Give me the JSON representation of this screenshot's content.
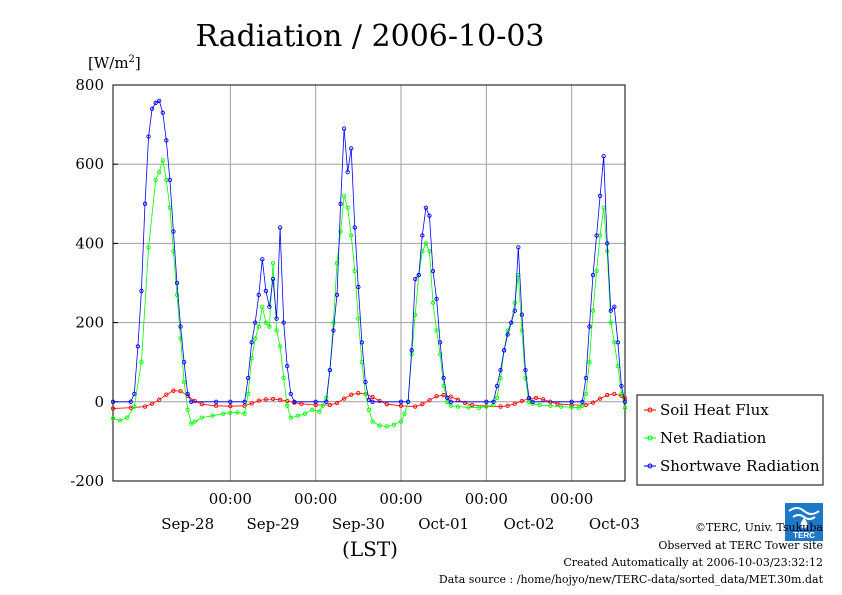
{
  "chart_data": {
    "type": "line",
    "title": "Radiation / 2006-10-03",
    "ylabel": "[W/m",
    "ylabel_sup": "2",
    "ylabel_close": "]",
    "xlabel": "(LST)",
    "ylim": [
      -200,
      800
    ],
    "yticks": [
      "800",
      "600",
      "400",
      "200",
      "0",
      "-200"
    ],
    "ytick_values": [
      800,
      600,
      400,
      200,
      0,
      -200
    ],
    "x_range_hours": [
      -33,
      111
    ],
    "xtick_hours": [
      0,
      24,
      48,
      72,
      96
    ],
    "xtick_time_labels": [
      "00:00",
      "00:00",
      "00:00",
      "00:00",
      "00:00"
    ],
    "date_labels": [
      "Sep-28",
      "Sep-29",
      "Sep-30",
      "Oct-01",
      "Oct-02",
      "Oct-03"
    ],
    "date_label_hours": [
      -12,
      12,
      36,
      60,
      84,
      108
    ],
    "grid": true,
    "legend_position": "right",
    "series": [
      {
        "name": "Soil Heat Flux",
        "color": "#ff0000",
        "points": [
          [
            -33,
            -17
          ],
          [
            -28,
            -15
          ],
          [
            -24,
            -12
          ],
          [
            -22,
            -5
          ],
          [
            -20,
            5
          ],
          [
            -18,
            18
          ],
          [
            -16,
            28
          ],
          [
            -14,
            27
          ],
          [
            -12,
            15
          ],
          [
            -10,
            2
          ],
          [
            -8,
            -6
          ],
          [
            -4,
            -10
          ],
          [
            0,
            -11
          ],
          [
            4,
            -10
          ],
          [
            6,
            -4
          ],
          [
            8,
            3
          ],
          [
            10,
            6
          ],
          [
            12,
            7
          ],
          [
            14,
            5
          ],
          [
            16,
            2
          ],
          [
            18,
            -2
          ],
          [
            20,
            -5
          ],
          [
            24,
            -8
          ],
          [
            28,
            -8
          ],
          [
            30,
            -3
          ],
          [
            32,
            8
          ],
          [
            34,
            18
          ],
          [
            36,
            22
          ],
          [
            38,
            20
          ],
          [
            40,
            12
          ],
          [
            42,
            2
          ],
          [
            44,
            -6
          ],
          [
            48,
            -10
          ],
          [
            52,
            -12
          ],
          [
            54,
            -6
          ],
          [
            56,
            4
          ],
          [
            58,
            14
          ],
          [
            60,
            17
          ],
          [
            62,
            13
          ],
          [
            64,
            5
          ],
          [
            66,
            -3
          ],
          [
            68,
            -8
          ],
          [
            72,
            -11
          ],
          [
            76,
            -12
          ],
          [
            78,
            -10
          ],
          [
            80,
            -5
          ],
          [
            82,
            2
          ],
          [
            84,
            8
          ],
          [
            86,
            10
          ],
          [
            88,
            6
          ],
          [
            90,
            0
          ],
          [
            92,
            -5
          ],
          [
            96,
            -8
          ],
          [
            100,
            -8
          ],
          [
            102,
            -2
          ],
          [
            104,
            8
          ],
          [
            106,
            17
          ],
          [
            108,
            20
          ],
          [
            110,
            15
          ],
          [
            111,
            9
          ]
        ]
      },
      {
        "name": "Net Radiation",
        "color": "#00ff00",
        "points": [
          [
            -33,
            -42
          ],
          [
            -31,
            -47
          ],
          [
            -29,
            -40
          ],
          [
            -27,
            -12
          ],
          [
            -25,
            100
          ],
          [
            -23,
            390
          ],
          [
            -21,
            560
          ],
          [
            -20,
            580
          ],
          [
            -19,
            610
          ],
          [
            -18,
            560
          ],
          [
            -17,
            490
          ],
          [
            -16,
            380
          ],
          [
            -15,
            270
          ],
          [
            -14,
            160
          ],
          [
            -13,
            50
          ],
          [
            -12,
            -20
          ],
          [
            -11,
            -55
          ],
          [
            -10,
            -50
          ],
          [
            -8,
            -40
          ],
          [
            -5,
            -35
          ],
          [
            -2,
            -30
          ],
          [
            0,
            -28
          ],
          [
            2,
            -27
          ],
          [
            4,
            -30
          ],
          [
            5,
            20
          ],
          [
            6,
            110
          ],
          [
            7,
            160
          ],
          [
            8,
            190
          ],
          [
            9,
            240
          ],
          [
            10,
            200
          ],
          [
            11,
            190
          ],
          [
            12,
            350
          ],
          [
            13,
            180
          ],
          [
            14,
            140
          ],
          [
            15,
            60
          ],
          [
            16,
            -10
          ],
          [
            17,
            -40
          ],
          [
            19,
            -35
          ],
          [
            21,
            -30
          ],
          [
            23,
            -20
          ],
          [
            25,
            -25
          ],
          [
            26,
            -10
          ],
          [
            27,
            10
          ],
          [
            28,
            80
          ],
          [
            29,
            200
          ],
          [
            30,
            350
          ],
          [
            31,
            430
          ],
          [
            32,
            520
          ],
          [
            33,
            490
          ],
          [
            34,
            420
          ],
          [
            35,
            330
          ],
          [
            36,
            210
          ],
          [
            37,
            100
          ],
          [
            38,
            20
          ],
          [
            39,
            -20
          ],
          [
            40,
            -50
          ],
          [
            42,
            -60
          ],
          [
            44,
            -62
          ],
          [
            46,
            -58
          ],
          [
            48,
            -50
          ],
          [
            49,
            -30
          ],
          [
            50,
            0
          ],
          [
            51,
            120
          ],
          [
            52,
            220
          ],
          [
            53,
            320
          ],
          [
            54,
            380
          ],
          [
            55,
            400
          ],
          [
            56,
            380
          ],
          [
            57,
            250
          ],
          [
            58,
            180
          ],
          [
            59,
            120
          ],
          [
            60,
            40
          ],
          [
            61,
            0
          ],
          [
            62,
            -10
          ],
          [
            64,
            -12
          ],
          [
            67,
            -14
          ],
          [
            70,
            -15
          ],
          [
            72,
            -12
          ],
          [
            74,
            -8
          ],
          [
            75,
            10
          ],
          [
            76,
            60
          ],
          [
            77,
            130
          ],
          [
            78,
            180
          ],
          [
            79,
            200
          ],
          [
            80,
            250
          ],
          [
            81,
            320
          ],
          [
            82,
            180
          ],
          [
            83,
            60
          ],
          [
            84,
            0
          ],
          [
            85,
            -5
          ],
          [
            87,
            -8
          ],
          [
            90,
            -10
          ],
          [
            93,
            -12
          ],
          [
            96,
            -14
          ],
          [
            98,
            -15
          ],
          [
            99,
            -10
          ],
          [
            100,
            20
          ],
          [
            101,
            100
          ],
          [
            102,
            230
          ],
          [
            103,
            330
          ],
          [
            104,
            420
          ],
          [
            105,
            490
          ],
          [
            106,
            380
          ],
          [
            107,
            200
          ],
          [
            108,
            150
          ],
          [
            109,
            90
          ],
          [
            110,
            20
          ],
          [
            111,
            -15
          ]
        ]
      },
      {
        "name": "Shortwave Radiation",
        "color": "#0000ff",
        "points": [
          [
            -33,
            0
          ],
          [
            -28,
            0
          ],
          [
            -27,
            20
          ],
          [
            -26,
            140
          ],
          [
            -25,
            280
          ],
          [
            -24,
            500
          ],
          [
            -23,
            670
          ],
          [
            -22,
            740
          ],
          [
            -21,
            755
          ],
          [
            -20,
            760
          ],
          [
            -19,
            730
          ],
          [
            -18,
            660
          ],
          [
            -17,
            560
          ],
          [
            -16,
            430
          ],
          [
            -15,
            300
          ],
          [
            -14,
            190
          ],
          [
            -13,
            100
          ],
          [
            -12,
            20
          ],
          [
            -11,
            0
          ],
          [
            -4,
            0
          ],
          [
            0,
            0
          ],
          [
            4,
            0
          ],
          [
            5,
            60
          ],
          [
            6,
            150
          ],
          [
            7,
            200
          ],
          [
            8,
            270
          ],
          [
            9,
            360
          ],
          [
            10,
            280
          ],
          [
            11,
            240
          ],
          [
            12,
            310
          ],
          [
            13,
            210
          ],
          [
            14,
            440
          ],
          [
            15,
            200
          ],
          [
            16,
            90
          ],
          [
            17,
            20
          ],
          [
            18,
            0
          ],
          [
            24,
            0
          ],
          [
            27,
            0
          ],
          [
            28,
            80
          ],
          [
            29,
            180
          ],
          [
            30,
            270
          ],
          [
            31,
            500
          ],
          [
            32,
            690
          ],
          [
            33,
            580
          ],
          [
            34,
            640
          ],
          [
            35,
            440
          ],
          [
            36,
            290
          ],
          [
            37,
            150
          ],
          [
            38,
            50
          ],
          [
            39,
            5
          ],
          [
            40,
            0
          ],
          [
            48,
            0
          ],
          [
            50,
            0
          ],
          [
            51,
            130
          ],
          [
            52,
            310
          ],
          [
            53,
            320
          ],
          [
            54,
            420
          ],
          [
            55,
            490
          ],
          [
            56,
            470
          ],
          [
            57,
            330
          ],
          [
            58,
            260
          ],
          [
            59,
            150
          ],
          [
            60,
            60
          ],
          [
            61,
            10
          ],
          [
            62,
            0
          ],
          [
            72,
            0
          ],
          [
            74,
            0
          ],
          [
            75,
            40
          ],
          [
            76,
            80
          ],
          [
            77,
            130
          ],
          [
            78,
            170
          ],
          [
            79,
            200
          ],
          [
            80,
            230
          ],
          [
            81,
            390
          ],
          [
            82,
            220
          ],
          [
            83,
            80
          ],
          [
            84,
            10
          ],
          [
            85,
            0
          ],
          [
            96,
            0
          ],
          [
            99,
            0
          ],
          [
            100,
            60
          ],
          [
            101,
            190
          ],
          [
            102,
            320
          ],
          [
            103,
            420
          ],
          [
            104,
            520
          ],
          [
            105,
            620
          ],
          [
            106,
            400
          ],
          [
            107,
            230
          ],
          [
            108,
            240
          ],
          [
            109,
            150
          ],
          [
            110,
            40
          ],
          [
            111,
            0
          ]
        ]
      }
    ]
  },
  "footer": {
    "copyright": "©TERC, Univ. Tsukuba",
    "observed": "Observed at TERC Tower site",
    "created": "Created Automatically at 2006-10-03/23:32:12",
    "source": "Data source : /home/hojyo/new/TERC-data/sorted_data/MET.30m.dat"
  },
  "logo": {
    "text": "TERC",
    "color": "#1e78c8"
  }
}
